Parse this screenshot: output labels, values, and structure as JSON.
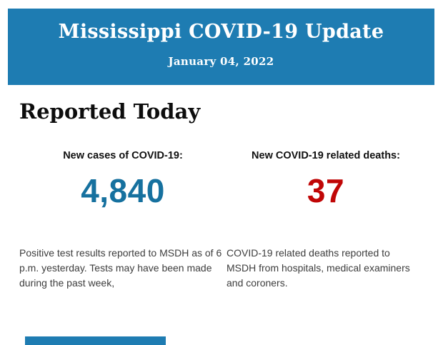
{
  "header": {
    "title": "Mississippi COVID-19 Update",
    "date": "January 04, 2022",
    "background_color": "#1e7cb2",
    "text_color": "#ffffff"
  },
  "main": {
    "section_title": "Reported Today",
    "stats": [
      {
        "label": "New cases of COVID-19:",
        "value": "4,840",
        "value_color": "#16719f",
        "description": "Positive test results reported to MSDH as of 6 p.m. yesterday. Tests may have been made during the past week,"
      },
      {
        "label": "New COVID-19 related deaths:",
        "value": "37",
        "value_color": "#c00606",
        "description": "COVID-19 related deaths reported to MSDH from hospitals, medical examiners and coroners."
      }
    ]
  },
  "footer": {
    "partial_bar_color": "#1e7cb2"
  }
}
